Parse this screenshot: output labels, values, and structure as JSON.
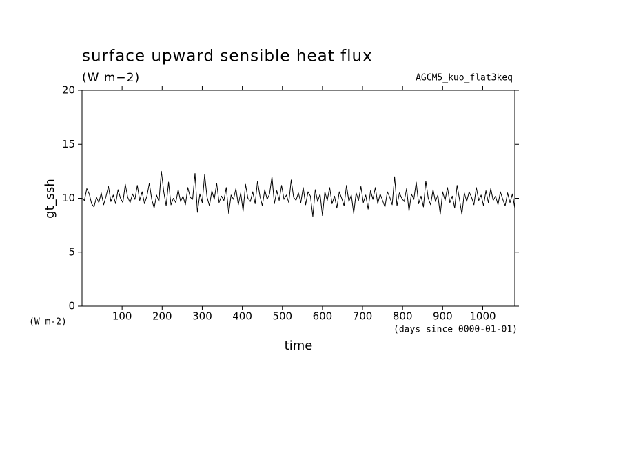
{
  "chart_data": {
    "type": "line",
    "title": "surface upward sensible heat flux",
    "subtitle": "(W m−2)",
    "run_label": "AGCM5_kuo_flat3keq",
    "y_label": "gt_ssh",
    "x_label": "time",
    "y_unit_label": "(W m-2)",
    "x_unit_label": "(days since 0000-01-01)",
    "color": "#000000",
    "xlim": [
      0,
      1080
    ],
    "ylim": [
      0,
      20
    ],
    "xticks": [
      100,
      200,
      300,
      400,
      500,
      600,
      700,
      800,
      900,
      1000
    ],
    "yticks": [
      0,
      5,
      10,
      15,
      20
    ],
    "grid": false,
    "x": [
      0,
      6,
      12,
      18,
      24,
      30,
      36,
      42,
      48,
      54,
      60,
      66,
      72,
      78,
      84,
      90,
      96,
      102,
      108,
      114,
      120,
      126,
      132,
      138,
      144,
      150,
      156,
      162,
      168,
      174,
      180,
      186,
      192,
      198,
      204,
      210,
      216,
      222,
      228,
      234,
      240,
      246,
      252,
      258,
      264,
      270,
      276,
      282,
      288,
      294,
      300,
      306,
      312,
      318,
      324,
      330,
      336,
      342,
      348,
      354,
      360,
      366,
      372,
      378,
      384,
      390,
      396,
      402,
      408,
      414,
      420,
      426,
      432,
      438,
      444,
      450,
      456,
      462,
      468,
      474,
      480,
      486,
      492,
      498,
      504,
      510,
      516,
      522,
      528,
      534,
      540,
      546,
      552,
      558,
      564,
      570,
      576,
      582,
      588,
      594,
      600,
      606,
      612,
      618,
      624,
      630,
      636,
      642,
      648,
      654,
      660,
      666,
      672,
      678,
      684,
      690,
      696,
      702,
      708,
      714,
      720,
      726,
      732,
      738,
      744,
      750,
      756,
      762,
      768,
      774,
      780,
      786,
      792,
      798,
      804,
      810,
      816,
      822,
      828,
      834,
      840,
      846,
      852,
      858,
      864,
      870,
      876,
      882,
      888,
      894,
      900,
      906,
      912,
      918,
      924,
      930,
      936,
      942,
      948,
      954,
      960,
      966,
      972,
      978,
      984,
      990,
      996,
      1002,
      1008,
      1014,
      1020,
      1026,
      1032,
      1038,
      1044,
      1050,
      1056,
      1062,
      1068,
      1074,
      1080
    ],
    "values": [
      10.0,
      9.8,
      10.9,
      10.4,
      9.5,
      9.2,
      10.1,
      9.6,
      10.5,
      9.4,
      10.2,
      11.1,
      9.7,
      10.3,
      9.5,
      10.8,
      10.0,
      9.6,
      11.3,
      10.1,
      9.6,
      10.4,
      9.9,
      11.2,
      9.8,
      10.6,
      9.5,
      10.2,
      11.4,
      9.9,
      9.1,
      10.3,
      9.7,
      12.5,
      10.6,
      9.3,
      11.5,
      9.4,
      10.0,
      9.6,
      10.8,
      9.7,
      10.2,
      9.4,
      11.0,
      10.1,
      9.9,
      12.3,
      8.7,
      10.4,
      9.6,
      12.2,
      10.1,
      9.3,
      10.7,
      9.9,
      11.4,
      9.6,
      10.2,
      9.8,
      11.0,
      8.6,
      10.3,
      9.9,
      10.9,
      9.4,
      10.5,
      8.8,
      11.3,
      10.0,
      9.7,
      10.6,
      9.5,
      11.6,
      10.2,
      9.3,
      10.8,
      9.9,
      10.4,
      12.0,
      9.5,
      10.7,
      9.8,
      11.2,
      9.9,
      10.3,
      9.6,
      11.7,
      10.1,
      9.8,
      10.5,
      9.6,
      11.0,
      9.4,
      10.6,
      10.2,
      8.3,
      10.8,
      9.7,
      10.4,
      8.4,
      10.6,
      9.8,
      11.0,
      9.5,
      10.2,
      9.1,
      10.6,
      10.0,
      9.3,
      11.2,
      9.7,
      10.3,
      8.6,
      10.5,
      9.8,
      11.1,
      9.6,
      10.3,
      9.0,
      10.7,
      9.9,
      11.0,
      9.5,
      10.4,
      9.8,
      9.2,
      10.6,
      10.1,
      9.4,
      12.0,
      9.3,
      10.5,
      10.0,
      9.7,
      10.9,
      8.8,
      10.4,
      9.9,
      11.5,
      9.5,
      10.2,
      9.2,
      11.6,
      10.0,
      9.4,
      10.8,
      9.7,
      10.3,
      8.5,
      10.6,
      9.8,
      11.0,
      9.6,
      10.2,
      9.1,
      11.2,
      9.9,
      8.5,
      10.5,
      9.7,
      10.6,
      10.1,
      9.4,
      11.0,
      9.8,
      10.3,
      9.3,
      10.7,
      9.6,
      10.9,
      9.8,
      10.2,
      9.4,
      10.6,
      9.9,
      9.3,
      10.5,
      9.6,
      10.4,
      9.1
    ]
  }
}
